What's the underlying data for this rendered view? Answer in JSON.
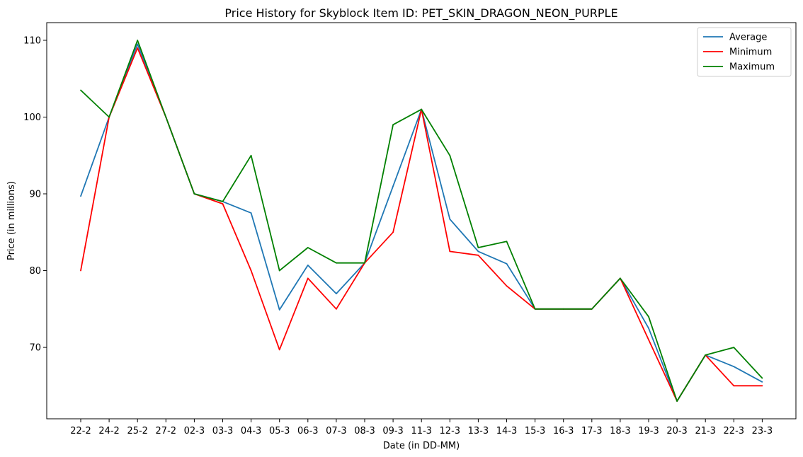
{
  "chart_data": {
    "type": "line",
    "title": "Price History for Skyblock Item ID: PET_SKIN_DRAGON_NEON_PURPLE",
    "xlabel": "Date (in DD-MM)",
    "ylabel": "Price (in millions)",
    "categories": [
      "22-2",
      "24-2",
      "25-2",
      "27-2",
      "02-3",
      "03-3",
      "04-3",
      "05-3",
      "06-3",
      "07-3",
      "08-3",
      "09-3",
      "11-3",
      "12-3",
      "13-3",
      "14-3",
      "15-3",
      "16-3",
      "17-3",
      "18-3",
      "19-3",
      "20-3",
      "21-3",
      "22-3",
      "23-3"
    ],
    "ylim": [
      60.7,
      112.3
    ],
    "yticks": [
      70,
      80,
      90,
      100,
      110
    ],
    "grid": false,
    "legend_position": "top-right",
    "series": [
      {
        "name": "Average",
        "color": "#1f77b4",
        "values": [
          89.7,
          100,
          109.5,
          100,
          90,
          89,
          87.5,
          74.9,
          80.7,
          77,
          81,
          91,
          101,
          86.7,
          82.5,
          80.9,
          75,
          75,
          75,
          79,
          72.5,
          63,
          69,
          67.5,
          65.5
        ]
      },
      {
        "name": "Minimum",
        "color": "#ff0000",
        "values": [
          80,
          100,
          109,
          100,
          90,
          88.7,
          80,
          69.7,
          79,
          75,
          81,
          85,
          101,
          82.5,
          82,
          78,
          75,
          75,
          75,
          79,
          71,
          63,
          69,
          65,
          65
        ]
      },
      {
        "name": "Maximum",
        "color": "#008000",
        "values": [
          103.5,
          100,
          110,
          100,
          90,
          89,
          95,
          80,
          83,
          81,
          81,
          99,
          101,
          95,
          83,
          83.8,
          75,
          75,
          75,
          79,
          74,
          63,
          69,
          70,
          66
        ]
      }
    ]
  }
}
